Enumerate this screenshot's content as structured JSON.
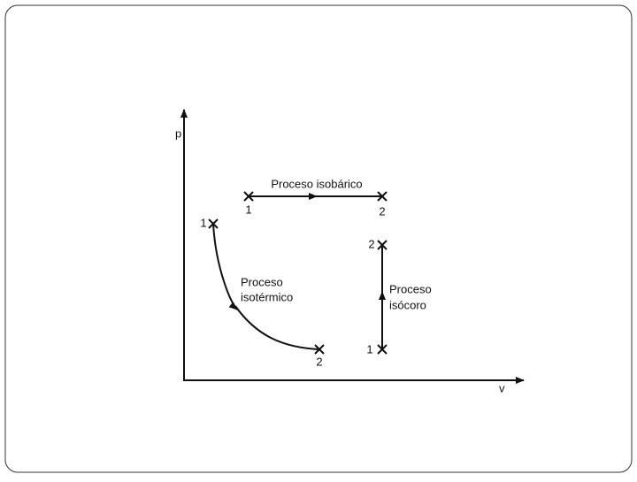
{
  "axes": {
    "y_label": "p",
    "x_label": "v"
  },
  "processes": [
    {
      "label": [
        "Proceso isobárico"
      ],
      "start": "1",
      "end": "2"
    },
    {
      "label": [
        "Proceso",
        "isotérmico"
      ],
      "start": "1",
      "end": "2"
    },
    {
      "label": [
        "Proceso",
        "isócoro"
      ],
      "start": "1",
      "end": "2"
    }
  ]
}
